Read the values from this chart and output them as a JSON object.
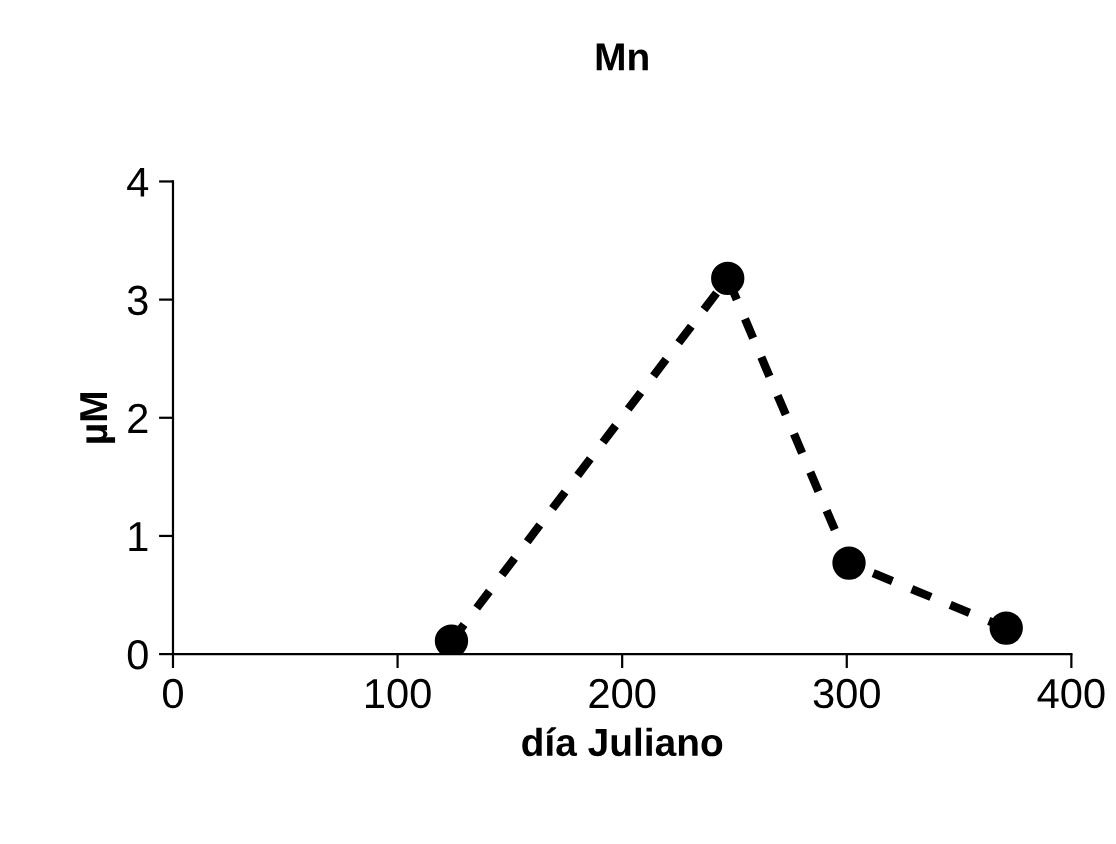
{
  "chart_data": {
    "type": "line",
    "title": "Mn",
    "xlabel": "día Juliano",
    "ylabel": "µM",
    "x": [
      124,
      247,
      301,
      371
    ],
    "series": [
      {
        "color": "#000000",
        "values": [
          0.11,
          3.18,
          0.77,
          0.22
        ]
      }
    ],
    "xlim": [
      0,
      400
    ],
    "xticks": [
      0,
      100,
      200,
      300,
      400
    ],
    "ylim": [
      0,
      4
    ],
    "yticks": [
      0,
      1,
      2,
      3,
      4
    ],
    "grid": false,
    "legend": false,
    "marker": "circle",
    "line_style": "dashed"
  }
}
